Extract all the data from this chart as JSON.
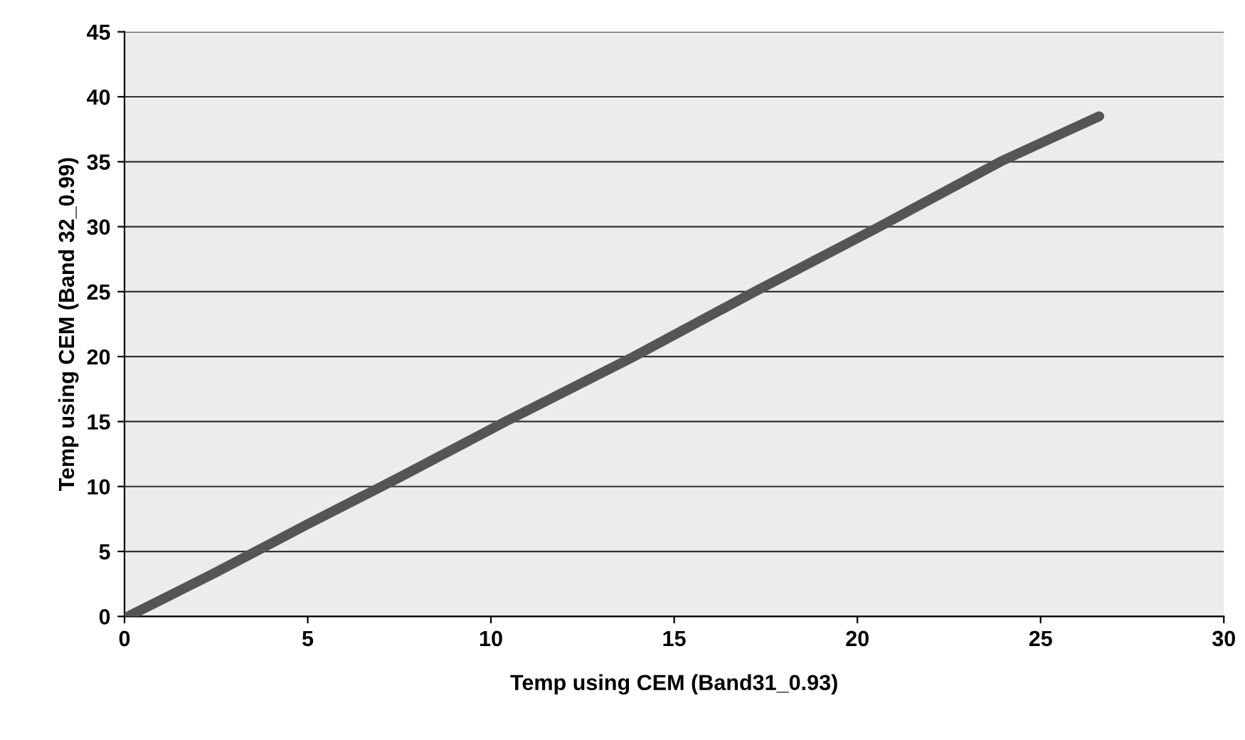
{
  "chart_data": {
    "type": "line",
    "xlabel": "Temp using CEM (Band31_0.93)",
    "ylabel": "Temp using CEM (Band 32_0.99)",
    "series": [
      {
        "color": "#555555",
        "x": [
          0.1,
          2.5,
          5,
          7.5,
          10.4,
          13.9,
          17.2,
          20.6,
          23.9,
          26.6
        ],
        "values": [
          0,
          3.4,
          7.1,
          10.7,
          15,
          20,
          25,
          30,
          35,
          38.5
        ]
      }
    ],
    "xlim": [
      0,
      30
    ],
    "xticks": [
      0,
      5,
      10,
      15,
      20,
      25,
      30
    ],
    "ylim": [
      0,
      45
    ],
    "yticks": [
      0,
      5,
      10,
      15,
      20,
      25,
      30,
      35,
      40,
      45
    ],
    "grid": "y",
    "marker": "none",
    "line_style": "solid"
  }
}
